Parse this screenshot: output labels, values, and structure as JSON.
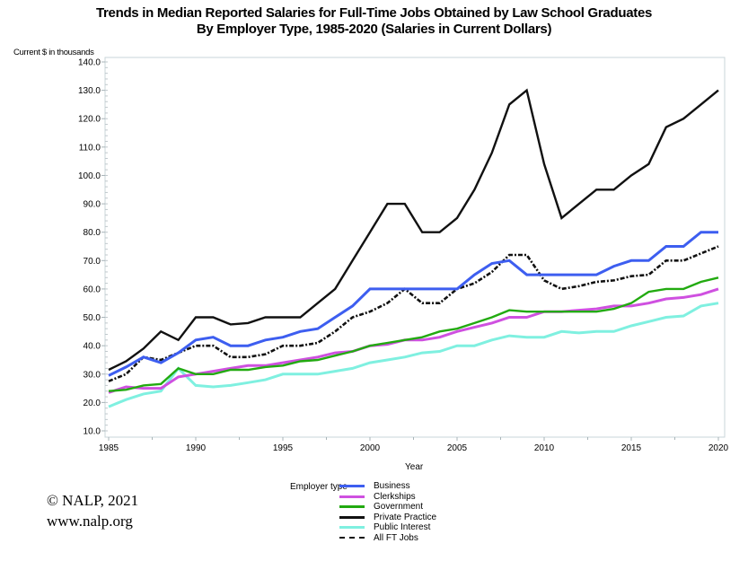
{
  "chart_data": {
    "type": "line",
    "title": "Trends in Median Reported Salaries for Full-Time Jobs Obtained by Law School Graduates",
    "subtitle": "By Employer Type, 1985-2020 (Salaries in Current Dollars)",
    "xlabel": "Year",
    "ylabel": "Current $ in thousands",
    "xlim": [
      1985,
      2020
    ],
    "ylim": [
      10,
      140
    ],
    "x_ticks": [
      1985,
      1990,
      1995,
      2000,
      2005,
      2010,
      2015,
      2020
    ],
    "x_tick_labels": [
      "1985",
      "1990",
      "1995",
      "2000",
      "2005",
      "2010",
      "2015",
      "2020"
    ],
    "y_ticks": [
      10,
      20,
      30,
      40,
      50,
      60,
      70,
      80,
      90,
      100,
      110,
      120,
      130,
      140
    ],
    "y_tick_labels": [
      "10.0",
      "20.0",
      "30.0",
      "40.0",
      "50.0",
      "60.0",
      "70.0",
      "80.0",
      "90.0",
      "100.0",
      "110.0",
      "120.0",
      "130.0",
      "140.0"
    ],
    "grid": false,
    "legend_title": "Employer type",
    "legend_position": "bottom",
    "x": [
      1985,
      1986,
      1987,
      1988,
      1989,
      1990,
      1991,
      1992,
      1993,
      1994,
      1995,
      1996,
      1997,
      1998,
      1999,
      2000,
      2001,
      2002,
      2003,
      2004,
      2005,
      2006,
      2007,
      2008,
      2009,
      2010,
      2011,
      2012,
      2013,
      2014,
      2015,
      2016,
      2017,
      2018,
      2019,
      2020
    ],
    "series": [
      {
        "name": "Business",
        "color": "#3d5ef0",
        "dash": "solid",
        "values": [
          29.5,
          32.5,
          36,
          34,
          37.5,
          42,
          43,
          40,
          40,
          42,
          43,
          45,
          46,
          50,
          54,
          60,
          60,
          60,
          60,
          60,
          60,
          65,
          69,
          70,
          65,
          65,
          65,
          65,
          65,
          68,
          70,
          70,
          75,
          75,
          80,
          80
        ]
      },
      {
        "name": "Clerkships",
        "color": "#cf50e0",
        "dash": "solid",
        "values": [
          23.5,
          25.5,
          25,
          25,
          29,
          30,
          31,
          32,
          33,
          33,
          34,
          35,
          36,
          37.5,
          38,
          40,
          40.5,
          42,
          42,
          43,
          45,
          46.5,
          48,
          50,
          50,
          52,
          52,
          52.5,
          53,
          54,
          54,
          55,
          56.5,
          57,
          58,
          60
        ]
      },
      {
        "name": "Government",
        "color": "#22aa10",
        "dash": "solid",
        "values": [
          24,
          24.5,
          26,
          26.5,
          32,
          30,
          30,
          31.5,
          31.5,
          32.5,
          33,
          34.5,
          35,
          36.5,
          38,
          40,
          41,
          42,
          43,
          45,
          46,
          48,
          50,
          52.5,
          52,
          52,
          52,
          52,
          52,
          53,
          55,
          59,
          60,
          60,
          62.5,
          64
        ]
      },
      {
        "name": "Private Practice",
        "color": "#111111",
        "dash": "solid",
        "values": [
          31.5,
          34.5,
          39,
          45,
          42,
          50,
          50,
          47.5,
          48,
          50,
          50,
          50,
          55,
          60,
          70,
          80,
          90,
          90,
          80,
          80,
          85,
          95,
          108,
          125,
          130,
          104,
          85,
          90,
          95,
          95,
          100,
          104,
          117,
          120,
          125,
          130
        ]
      },
      {
        "name": "Public Interest",
        "color": "#7ff0e0",
        "dash": "solid",
        "values": [
          18.5,
          21,
          23,
          24,
          32,
          26,
          25.5,
          26,
          27,
          28,
          30,
          30,
          30,
          31,
          32,
          34,
          35,
          36,
          37.5,
          38,
          40,
          40,
          42,
          43.5,
          43,
          43,
          45,
          44.5,
          45,
          45,
          47,
          48.5,
          50,
          50.5,
          54,
          55
        ]
      },
      {
        "name": "All FT Jobs",
        "color": "#111111",
        "dash": "dotted",
        "values": [
          27.5,
          30,
          36,
          35,
          37.5,
          40,
          40,
          36,
          36,
          37,
          40,
          40,
          41,
          45,
          50,
          52,
          55,
          60,
          55,
          55,
          60,
          62,
          66,
          72,
          72,
          63,
          60,
          61,
          62.5,
          63,
          64.5,
          65,
          70,
          70,
          72.5,
          75
        ]
      }
    ]
  },
  "footer": {
    "copyright": "© NALP, 2021",
    "website": "www.nalp.org"
  }
}
